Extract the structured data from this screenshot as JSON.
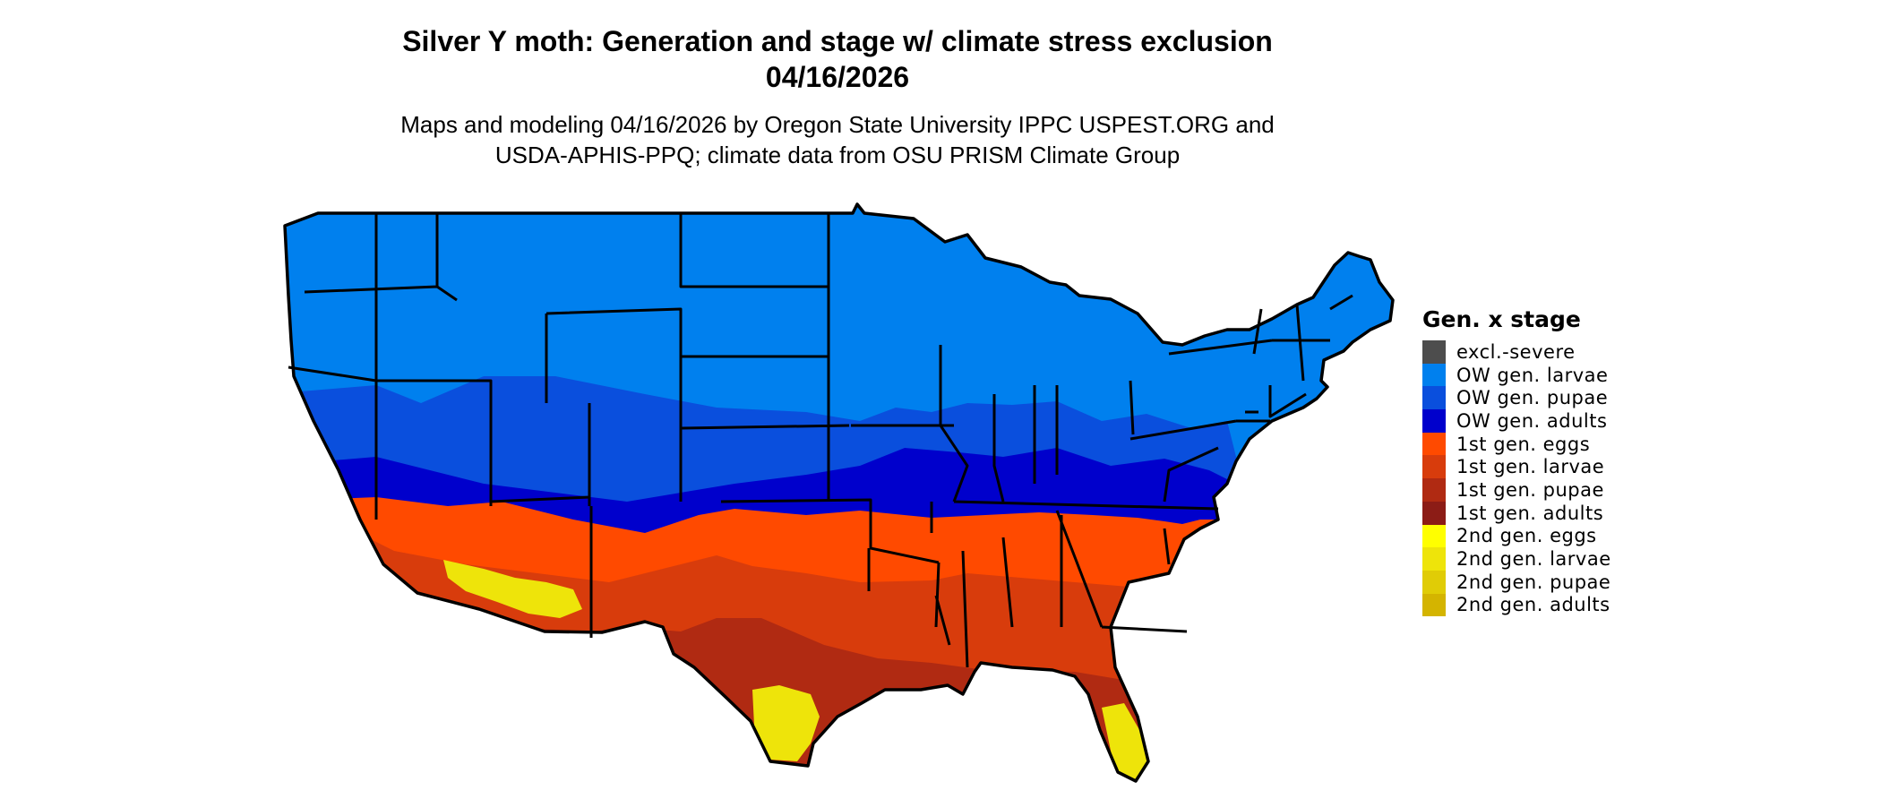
{
  "map": {
    "title_line1": "Silver Y moth: Generation and stage w/ climate stress exclusion",
    "title_line2": "04/16/2026",
    "subtitle_line1": "Maps and modeling 04/16/2026 by Oregon State University IPPC USPEST.ORG and",
    "subtitle_line2": "USDA-APHIS-PPQ; climate data from OSU PRISM Climate Group",
    "region": "contiguous United States",
    "outline_color": "#000000"
  },
  "legend": {
    "title": "Gen. x stage",
    "items": [
      {
        "label": "excl.-severe",
        "color": "#4d4d4d"
      },
      {
        "label": "OW gen. larvae",
        "color": "#0080ee"
      },
      {
        "label": "OW gen. pupae",
        "color": "#0a4fdd"
      },
      {
        "label": "OW gen. adults",
        "color": "#0000cc"
      },
      {
        "label": "1st gen. eggs",
        "color": "#ff4a00"
      },
      {
        "label": "1st gen. larvae",
        "color": "#d83c0c"
      },
      {
        "label": "1st gen. pupae",
        "color": "#b02a12"
      },
      {
        "label": "1st gen. adults",
        "color": "#8c1c16"
      },
      {
        "label": "2nd gen. eggs",
        "color": "#ffff00"
      },
      {
        "label": "2nd gen. larvae",
        "color": "#eee40a"
      },
      {
        "label": "2nd gen. pupae",
        "color": "#e0cc06"
      },
      {
        "label": "2nd gen. adults",
        "color": "#d4b400"
      }
    ]
  }
}
